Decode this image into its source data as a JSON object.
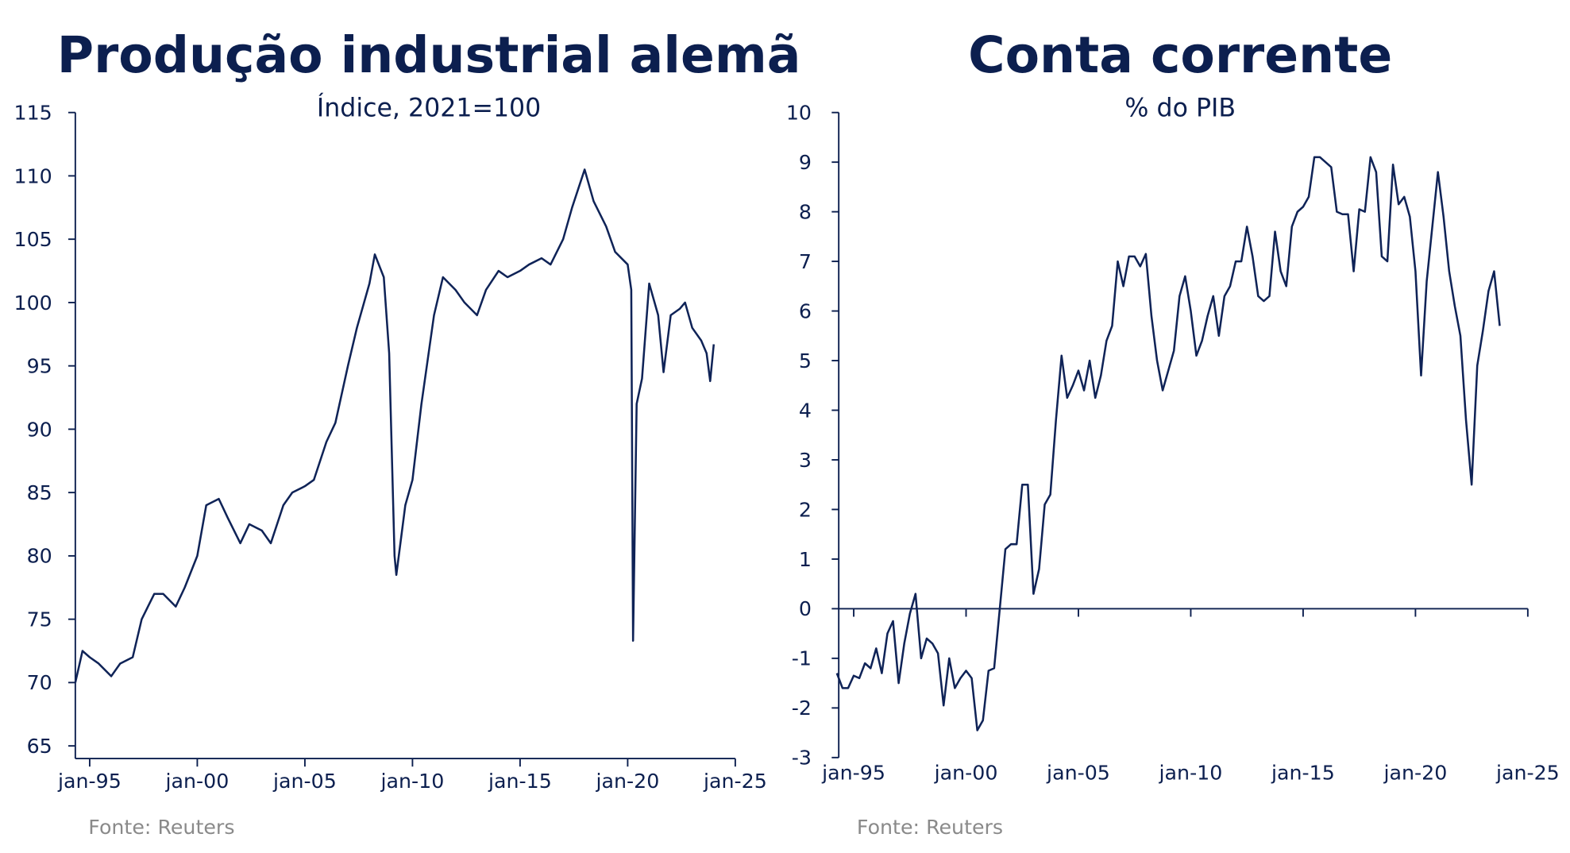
{
  "chart_data": [
    {
      "type": "line",
      "title": "Produção industrial alemã",
      "subtitle": "Índice, 2021=100",
      "source": "Fonte: Reuters",
      "color": "#0f2357",
      "x": [
        "1994-05",
        "1994-09",
        "1995-01",
        "1995-06",
        "1996-01",
        "1996-06",
        "1997-01",
        "1997-06",
        "1998-01",
        "1998-06",
        "1999-01",
        "1999-06",
        "2000-01",
        "2000-06",
        "2001-01",
        "2001-06",
        "2002-01",
        "2002-06",
        "2003-01",
        "2003-06",
        "2004-01",
        "2004-06",
        "2005-01",
        "2005-06",
        "2006-01",
        "2006-06",
        "2007-01",
        "2007-06",
        "2008-01",
        "2008-04",
        "2008-09",
        "2008-12",
        "2009-03",
        "2009-04",
        "2009-09",
        "2010-01",
        "2010-06",
        "2011-01",
        "2011-06",
        "2012-01",
        "2012-06",
        "2013-01",
        "2013-06",
        "2014-01",
        "2014-06",
        "2015-01",
        "2015-06",
        "2016-01",
        "2016-06",
        "2017-01",
        "2017-06",
        "2018-01",
        "2018-06",
        "2019-01",
        "2019-06",
        "2020-01",
        "2020-03",
        "2020-04",
        "2020-06",
        "2020-09",
        "2021-01",
        "2021-06",
        "2021-09",
        "2022-01",
        "2022-06",
        "2022-09",
        "2023-01",
        "2023-06",
        "2023-09",
        "2023-11",
        "2024-01"
      ],
      "values": [
        70,
        72.5,
        72,
        71.5,
        70.5,
        71.5,
        72,
        75,
        77,
        77,
        76,
        77.5,
        80,
        84,
        84.5,
        83,
        81,
        82.5,
        82,
        81,
        84,
        85,
        85.5,
        86,
        89,
        90.5,
        95,
        98,
        101.5,
        103.8,
        102,
        96,
        80,
        78.5,
        84,
        86,
        92,
        99,
        102,
        101,
        100,
        99,
        101,
        102.5,
        102,
        102.5,
        103,
        103.5,
        103,
        105,
        107.5,
        110.5,
        108,
        106,
        104,
        103,
        101,
        73.3,
        92,
        94,
        101.5,
        99,
        94.5,
        99,
        99.5,
        100,
        98,
        97,
        96,
        93.8,
        96.7
      ],
      "xlim": [
        "1994-05",
        "2025-01"
      ],
      "xticks": [
        {
          "value": "1995-01",
          "label": "jan-95"
        },
        {
          "value": "2000-01",
          "label": "jan-00"
        },
        {
          "value": "2005-01",
          "label": "jan-05"
        },
        {
          "value": "2010-01",
          "label": "jan-10"
        },
        {
          "value": "2015-01",
          "label": "jan-15"
        },
        {
          "value": "2020-01",
          "label": "jan-20"
        },
        {
          "value": "2025-01",
          "label": "jan-25"
        }
      ],
      "ylim": [
        64,
        115
      ],
      "yticks": [
        65,
        70,
        75,
        80,
        85,
        90,
        95,
        100,
        105,
        110,
        115
      ],
      "xaxis_at_zero": false
    },
    {
      "type": "line",
      "title": "Conta corrente",
      "subtitle": "% do PIB",
      "source": "Fonte: Reuters",
      "color": "#0f2357",
      "x": [
        "1994-04",
        "1994-07",
        "1994-10",
        "1995-01",
        "1995-04",
        "1995-07",
        "1995-10",
        "1996-01",
        "1996-04",
        "1996-07",
        "1996-10",
        "1997-01",
        "1997-04",
        "1997-07",
        "1997-10",
        "1998-01",
        "1998-04",
        "1998-07",
        "1998-10",
        "1999-01",
        "1999-04",
        "1999-07",
        "1999-10",
        "2000-01",
        "2000-04",
        "2000-07",
        "2000-10",
        "2001-01",
        "2001-04",
        "2001-07",
        "2001-10",
        "2002-01",
        "2002-04",
        "2002-07",
        "2002-10",
        "2003-01",
        "2003-04",
        "2003-07",
        "2003-10",
        "2004-01",
        "2004-04",
        "2004-07",
        "2004-10",
        "2005-01",
        "2005-04",
        "2005-07",
        "2005-10",
        "2006-01",
        "2006-04",
        "2006-07",
        "2006-10",
        "2007-01",
        "2007-04",
        "2007-07",
        "2007-10",
        "2008-01",
        "2008-04",
        "2008-07",
        "2008-10",
        "2009-01",
        "2009-04",
        "2009-07",
        "2009-10",
        "2010-01",
        "2010-04",
        "2010-07",
        "2010-10",
        "2011-01",
        "2011-04",
        "2011-07",
        "2011-10",
        "2012-01",
        "2012-04",
        "2012-07",
        "2012-10",
        "2013-01",
        "2013-04",
        "2013-07",
        "2013-10",
        "2014-01",
        "2014-04",
        "2014-07",
        "2014-10",
        "2015-01",
        "2015-04",
        "2015-07",
        "2015-10",
        "2016-01",
        "2016-04",
        "2016-07",
        "2016-10",
        "2017-01",
        "2017-04",
        "2017-07",
        "2017-10",
        "2018-01",
        "2018-04",
        "2018-07",
        "2018-10",
        "2019-01",
        "2019-04",
        "2019-07",
        "2019-10",
        "2020-01",
        "2020-04",
        "2020-07",
        "2020-10",
        "2021-01",
        "2021-04",
        "2021-07",
        "2021-10",
        "2022-01",
        "2022-04",
        "2022-07",
        "2022-10",
        "2023-01",
        "2023-04",
        "2023-07",
        "2023-10"
      ],
      "values": [
        -1.3,
        -1.6,
        -1.6,
        -1.35,
        -1.4,
        -1.1,
        -1.2,
        -0.8,
        -1.3,
        -0.5,
        -0.25,
        -1.5,
        -0.7,
        -0.1,
        0.3,
        -1.0,
        -0.6,
        -0.7,
        -0.9,
        -1.95,
        -1.0,
        -1.6,
        -1.4,
        -1.25,
        -1.4,
        -2.45,
        -2.25,
        -1.25,
        -1.2,
        0,
        1.2,
        1.3,
        1.3,
        2.5,
        2.5,
        0.3,
        0.8,
        2.1,
        2.3,
        3.8,
        5.1,
        4.25,
        4.5,
        4.8,
        4.4,
        5.0,
        4.25,
        4.7,
        5.4,
        5.7,
        7.0,
        6.5,
        7.1,
        7.1,
        6.9,
        7.15,
        5.9,
        5.0,
        4.4,
        4.8,
        5.2,
        6.3,
        6.7,
        6.0,
        5.1,
        5.4,
        5.9,
        6.3,
        5.5,
        6.3,
        6.5,
        7.0,
        7.0,
        7.7,
        7.1,
        6.3,
        6.2,
        6.3,
        7.6,
        6.8,
        6.5,
        7.7,
        8.0,
        8.1,
        8.3,
        9.1,
        9.1,
        9.0,
        8.9,
        8.0,
        7.95,
        7.95,
        6.8,
        8.05,
        8.0,
        9.1,
        8.8,
        7.1,
        7.0,
        8.95,
        8.15,
        8.3,
        7.9,
        6.8,
        4.7,
        6.6,
        7.7,
        8.8,
        7.9,
        6.8,
        6.1,
        5.5,
        3.8,
        2.5,
        4.9,
        5.6,
        6.4,
        6.8,
        5.7
      ],
      "xlim": [
        "1994-05",
        "2025-01"
      ],
      "xticks": [
        {
          "value": "1995-01",
          "label": "jan-95"
        },
        {
          "value": "2000-01",
          "label": "jan-00"
        },
        {
          "value": "2005-01",
          "label": "jan-05"
        },
        {
          "value": "2010-01",
          "label": "jan-10"
        },
        {
          "value": "2015-01",
          "label": "jan-15"
        },
        {
          "value": "2020-01",
          "label": "jan-20"
        },
        {
          "value": "2025-01",
          "label": "jan-25"
        }
      ],
      "ylim": [
        -3,
        10
      ],
      "yticks": [
        -3,
        -2,
        -1,
        0,
        1,
        2,
        3,
        4,
        5,
        6,
        7,
        8,
        9,
        10
      ],
      "xaxis_at_zero": true
    }
  ]
}
